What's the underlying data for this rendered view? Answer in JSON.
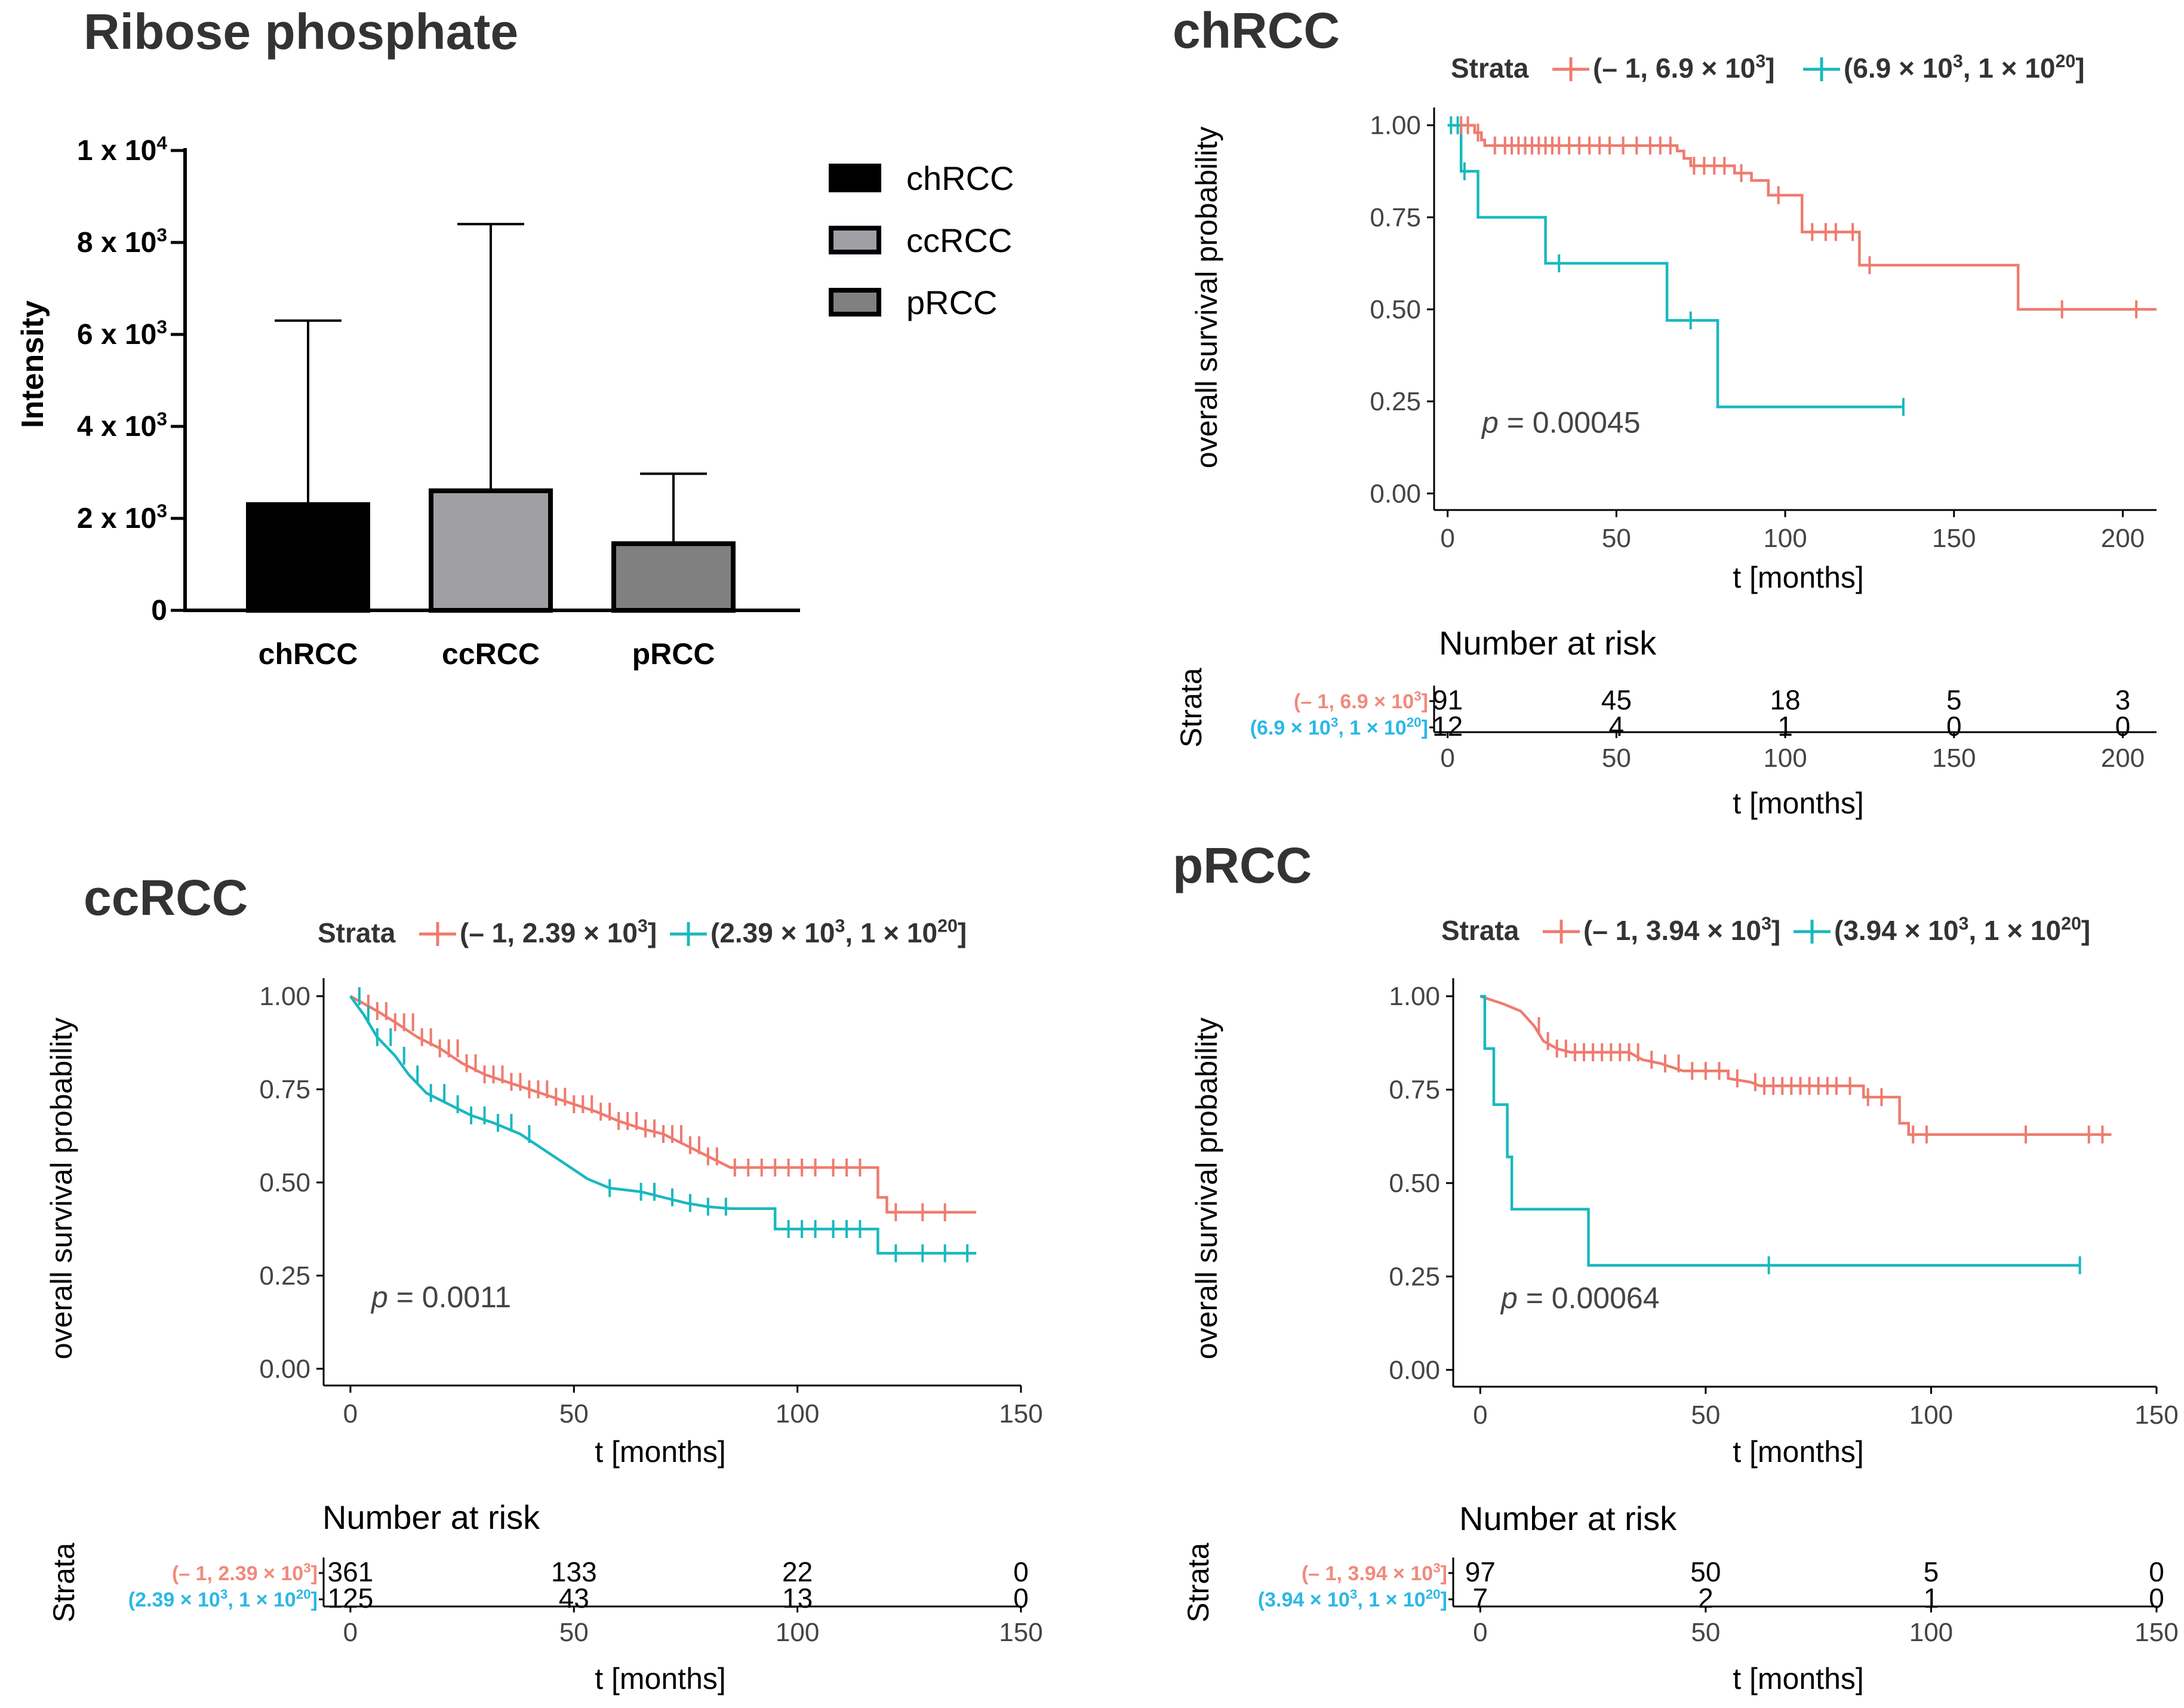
{
  "colors": {
    "red": "#ef7b6e",
    "teal": "#19b8bf",
    "red_label": "#f08a7d",
    "blue_label": "#2bb8e6",
    "black": "#000000"
  },
  "chart_data": [
    {
      "id": "bar",
      "type": "bar",
      "title": "Ribose phosphate",
      "xlabel": "",
      "ylabel": "Intensity",
      "ylim": [
        0,
        10000
      ],
      "yticks": [
        {
          "value": 0,
          "base": "0",
          "exp": ""
        },
        {
          "value": 2000,
          "base": "2 x 10",
          "exp": "3"
        },
        {
          "value": 4000,
          "base": "4 x 10",
          "exp": "3"
        },
        {
          "value": 6000,
          "base": "6 x 10",
          "exp": "3"
        },
        {
          "value": 8000,
          "base": "8 x 10",
          "exp": "3"
        },
        {
          "value": 10000,
          "base": "1 x 10",
          "exp": "4"
        }
      ],
      "categories": [
        "chRCC",
        "ccRCC",
        "pRCC"
      ],
      "values": [
        2300,
        2600,
        1450
      ],
      "errors": [
        6300,
        8400,
        2970
      ],
      "fills": [
        "#000000",
        "#a0a0a4",
        "#808080"
      ],
      "legend": [
        "chRCC",
        "ccRCC",
        "pRCC"
      ]
    },
    {
      "id": "chrcc",
      "type": "line",
      "title": "chRCC",
      "legend_title": "Strata",
      "strata": [
        {
          "label": "(– 1, 6.9 × 10",
          "exp": "3",
          "close": "]",
          "risk_label": "(– 1, 6.9 × 10",
          "risk_label_exp": "3",
          "risk_label_close": "]"
        },
        {
          "label": "(6.9 × 10",
          "exp": "3",
          "mid": ", 1 × 10",
          "exp2": "20",
          "close": "]",
          "risk_label": "(6.9 × 10",
          "risk_label_exp": "3",
          "risk_label_mid": ", 1 × 10",
          "risk_label_exp2": "20",
          "risk_label_close": "]"
        }
      ],
      "xlabel": "t [months]",
      "ylabel": "overall survival probability",
      "xlim": [
        0,
        210
      ],
      "ylim": [
        0,
        1
      ],
      "xticks": [
        0,
        50,
        100,
        150,
        200
      ],
      "yticks": [
        "0.00",
        "0.25",
        "0.50",
        "0.75",
        "1.00"
      ],
      "pvalue_prefix": "p",
      "pvalue": " = 0.00045",
      "risk_title": "Number at risk",
      "risk_ylabel": "Strata",
      "risk_table": [
        [
          91,
          45,
          18,
          5,
          3
        ],
        [
          12,
          4,
          1,
          0,
          0
        ]
      ],
      "curves": [
        [
          [
            0,
            1.0
          ],
          [
            8,
            1.0
          ],
          [
            8,
            0.98
          ],
          [
            10,
            0.98
          ],
          [
            10,
            0.96
          ],
          [
            11,
            0.96
          ],
          [
            11,
            0.945
          ],
          [
            68,
            0.945
          ],
          [
            68,
            0.93
          ],
          [
            70,
            0.93
          ],
          [
            70,
            0.91
          ],
          [
            72,
            0.91
          ],
          [
            72,
            0.89
          ],
          [
            85,
            0.89
          ],
          [
            85,
            0.87
          ],
          [
            90,
            0.87
          ],
          [
            90,
            0.85
          ],
          [
            95,
            0.85
          ],
          [
            95,
            0.81
          ],
          [
            105,
            0.81
          ],
          [
            105,
            0.71
          ],
          [
            122,
            0.71
          ],
          [
            122,
            0.62
          ],
          [
            169,
            0.62
          ],
          [
            169,
            0.5
          ],
          [
            210,
            0.5
          ]
        ],
        [
          [
            0,
            1.0
          ],
          [
            4,
            1.0
          ],
          [
            4,
            0.875
          ],
          [
            9,
            0.875
          ],
          [
            9,
            0.75
          ],
          [
            29,
            0.75
          ],
          [
            29,
            0.625
          ],
          [
            65,
            0.625
          ],
          [
            65,
            0.47
          ],
          [
            80,
            0.47
          ],
          [
            80,
            0.235
          ],
          [
            135,
            0.235
          ]
        ]
      ],
      "censors": [
        [
          4,
          6,
          9,
          14,
          17,
          19,
          21,
          23,
          25,
          27,
          29,
          31,
          33,
          36,
          39,
          42,
          45,
          48,
          52,
          56,
          60,
          63,
          66,
          73,
          76,
          79,
          82,
          87,
          98,
          108,
          112,
          115,
          120,
          125,
          182,
          204
        ],
        [
          1,
          3,
          5,
          33,
          72,
          135
        ]
      ]
    },
    {
      "id": "ccrcc",
      "type": "line",
      "title": "ccRCC",
      "legend_title": "Strata",
      "strata": [
        {
          "label": "(– 1, 2.39 × 10",
          "exp": "3",
          "close": "]",
          "risk_label": "(– 1, 2.39 × 10",
          "risk_label_exp": "3",
          "risk_label_close": "]"
        },
        {
          "label": "(2.39 × 10",
          "exp": "3",
          "mid": ", 1 × 10",
          "exp2": "20",
          "close": "]",
          "risk_label": "(2.39 × 10",
          "risk_label_exp": "3",
          "risk_label_mid": ", 1 × 10",
          "risk_label_exp2": "20",
          "risk_label_close": "]"
        }
      ],
      "xlabel": "t [months]",
      "ylabel": "overall survival probability",
      "xlim": [
        0,
        150
      ],
      "ylim": [
        0,
        1
      ],
      "xticks": [
        0,
        50,
        100,
        150
      ],
      "yticks": [
        "0.00",
        "0.25",
        "0.50",
        "0.75",
        "1.00"
      ],
      "pvalue_prefix": "p",
      "pvalue": " = 0.0011",
      "risk_title": "Number at risk",
      "risk_ylabel": "Strata",
      "risk_table": [
        [
          361,
          133,
          22,
          0
        ],
        [
          125,
          43,
          13,
          0
        ]
      ],
      "curves": [
        [
          [
            0,
            1.0
          ],
          [
            3,
            0.98
          ],
          [
            6,
            0.96
          ],
          [
            10,
            0.93
          ],
          [
            15,
            0.89
          ],
          [
            20,
            0.86
          ],
          [
            25,
            0.82
          ],
          [
            30,
            0.79
          ],
          [
            35,
            0.77
          ],
          [
            40,
            0.75
          ],
          [
            45,
            0.73
          ],
          [
            50,
            0.71
          ],
          [
            55,
            0.69
          ],
          [
            60,
            0.665
          ],
          [
            65,
            0.645
          ],
          [
            70,
            0.63
          ],
          [
            75,
            0.6
          ],
          [
            80,
            0.57
          ],
          [
            85,
            0.54
          ],
          [
            118,
            0.54
          ],
          [
            118,
            0.46
          ],
          [
            120,
            0.46
          ],
          [
            120,
            0.42
          ],
          [
            140,
            0.42
          ]
        ],
        [
          [
            0,
            1.0
          ],
          [
            3,
            0.95
          ],
          [
            6,
            0.89
          ],
          [
            10,
            0.84
          ],
          [
            13,
            0.79
          ],
          [
            17,
            0.74
          ],
          [
            22,
            0.71
          ],
          [
            27,
            0.68
          ],
          [
            32,
            0.66
          ],
          [
            38,
            0.63
          ],
          [
            43,
            0.59
          ],
          [
            48,
            0.55
          ],
          [
            53,
            0.51
          ],
          [
            58,
            0.485
          ],
          [
            65,
            0.475
          ],
          [
            70,
            0.46
          ],
          [
            75,
            0.445
          ],
          [
            80,
            0.435
          ],
          [
            85,
            0.43
          ],
          [
            95,
            0.43
          ],
          [
            95,
            0.375
          ],
          [
            118,
            0.375
          ],
          [
            118,
            0.31
          ],
          [
            140,
            0.31
          ]
        ]
      ],
      "censors": [
        [
          2,
          4,
          6,
          8,
          10,
          12,
          14,
          16,
          18,
          20,
          22,
          24,
          26,
          28,
          30,
          32,
          34,
          36,
          38,
          40,
          42,
          44,
          46,
          48,
          50,
          52,
          54,
          56,
          58,
          60,
          62,
          64,
          66,
          68,
          70,
          72,
          74,
          76,
          78,
          80,
          82,
          86,
          89,
          92,
          95,
          98,
          101,
          104,
          108,
          111,
          114,
          122,
          128,
          133
        ],
        [
          2,
          4,
          6,
          9,
          12,
          15,
          18,
          21,
          24,
          27,
          30,
          33,
          36,
          40,
          58,
          65,
          68,
          72,
          76,
          80,
          84,
          98,
          101,
          104,
          108,
          111,
          114,
          122,
          128,
          133,
          138
        ]
      ]
    },
    {
      "id": "prcc",
      "type": "line",
      "title": "pRCC",
      "legend_title": "Strata",
      "strata": [
        {
          "label": "(– 1, 3.94 × 10",
          "exp": "3",
          "close": "]",
          "risk_label": "(– 1, 3.94 × 10",
          "risk_label_exp": "3",
          "risk_label_close": "]"
        },
        {
          "label": "(3.94 × 10",
          "exp": "3",
          "mid": ", 1 × 10",
          "exp2": "20",
          "close": "]",
          "risk_label": "(3.94 × 10",
          "risk_label_exp": "3",
          "risk_label_mid": ", 1 × 10",
          "risk_label_exp2": "20",
          "risk_label_close": "]"
        }
      ],
      "xlabel": "t [months]",
      "ylabel": "overall survival probability",
      "xlim": [
        0,
        150
      ],
      "ylim": [
        0,
        1
      ],
      "xticks": [
        0,
        50,
        100,
        150
      ],
      "yticks": [
        "0.00",
        "0.25",
        "0.50",
        "0.75",
        "1.00"
      ],
      "pvalue_prefix": "p",
      "pvalue": " = 0.00064",
      "risk_title": "Number at risk",
      "risk_ylabel": "Strata",
      "risk_table": [
        [
          97,
          50,
          5,
          0
        ],
        [
          7,
          2,
          1,
          0
        ]
      ],
      "curves": [
        [
          [
            0,
            1.0
          ],
          [
            5,
            0.98
          ],
          [
            9,
            0.96
          ],
          [
            12,
            0.92
          ],
          [
            14,
            0.88
          ],
          [
            17,
            0.86
          ],
          [
            20,
            0.85
          ],
          [
            33,
            0.85
          ],
          [
            36,
            0.83
          ],
          [
            40,
            0.82
          ],
          [
            45,
            0.8
          ],
          [
            55,
            0.8
          ],
          [
            55,
            0.78
          ],
          [
            60,
            0.77
          ],
          [
            62,
            0.76
          ],
          [
            85,
            0.76
          ],
          [
            85,
            0.73
          ],
          [
            93,
            0.73
          ],
          [
            93,
            0.66
          ],
          [
            95,
            0.66
          ],
          [
            95,
            0.63
          ],
          [
            140,
            0.63
          ]
        ],
        [
          [
            0,
            1.0
          ],
          [
            1,
            1.0
          ],
          [
            1,
            0.86
          ],
          [
            3,
            0.86
          ],
          [
            3,
            0.71
          ],
          [
            6,
            0.71
          ],
          [
            6,
            0.57
          ],
          [
            7,
            0.57
          ],
          [
            7,
            0.43
          ],
          [
            24,
            0.43
          ],
          [
            24,
            0.28
          ],
          [
            133,
            0.28
          ]
        ]
      ],
      "censors": [
        [
          13,
          15,
          17,
          19,
          21,
          23,
          25,
          27,
          29,
          31,
          33,
          35,
          38,
          41,
          44,
          47,
          50,
          53,
          57,
          61,
          63,
          65,
          67,
          69,
          71,
          73,
          75,
          77,
          79,
          82,
          86,
          89,
          96,
          99,
          121,
          135,
          138
        ],
        [
          64,
          133
        ]
      ]
    }
  ]
}
